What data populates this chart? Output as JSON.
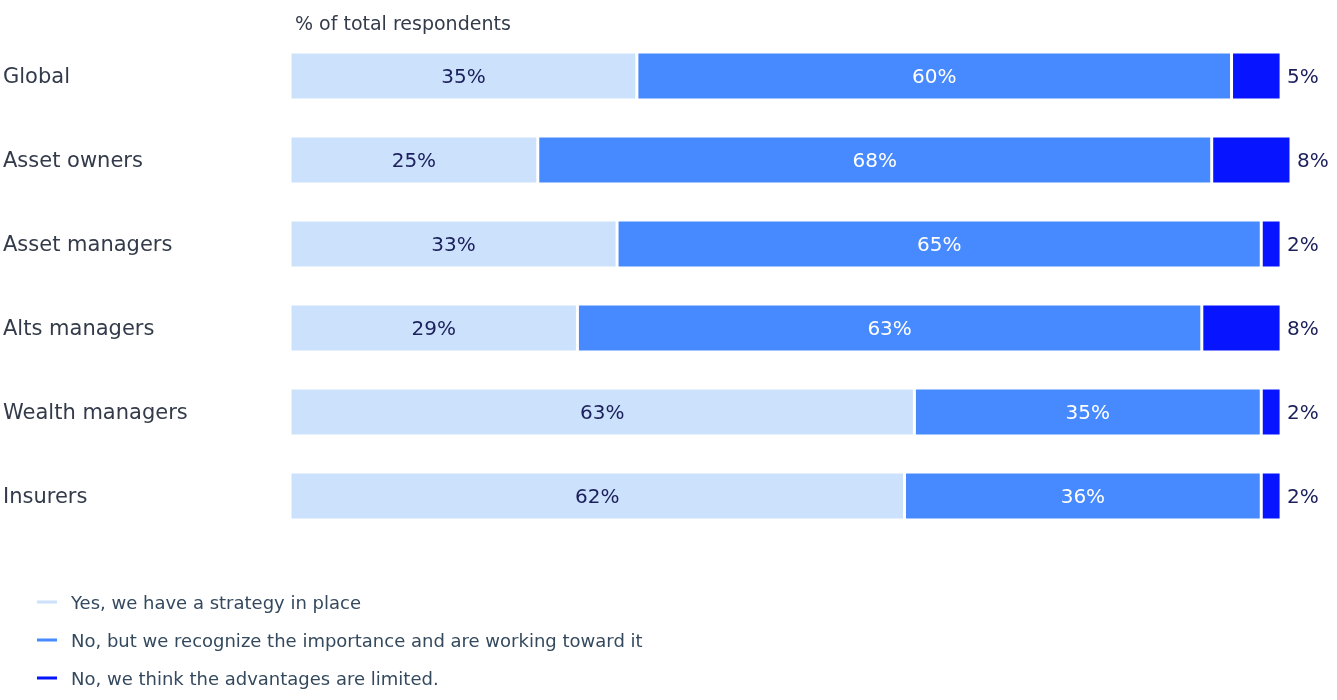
{
  "chart_data": {
    "type": "bar",
    "orientation": "horizontal",
    "stacked": true,
    "title": "% of total respondents",
    "categories": [
      "Global",
      "Asset owners",
      "Asset managers",
      "Alts managers",
      "Wealth managers",
      "Insurers"
    ],
    "series": [
      {
        "name": "Yes, we have a strategy in place",
        "color": "#cce1fb",
        "values": [
          35,
          25,
          33,
          29,
          63,
          62
        ],
        "value_labels": [
          "35%",
          "25%",
          "33%",
          "29%",
          "63%",
          "62%"
        ]
      },
      {
        "name": "No, but we recognize the importance and are working toward it",
        "color": "#478aff",
        "values": [
          60,
          68,
          65,
          63,
          35,
          36
        ],
        "value_labels": [
          "60%",
          "68%",
          "65%",
          "63%",
          "35%",
          "36%"
        ]
      },
      {
        "name": "No, we think the advantages are limited.",
        "color": "#0614ff",
        "values": [
          5,
          8,
          2,
          8,
          2,
          2
        ],
        "value_labels": [
          "5%",
          "8%",
          "2%",
          "8%",
          "2%",
          "2%"
        ]
      }
    ],
    "legend": "bottom left"
  }
}
